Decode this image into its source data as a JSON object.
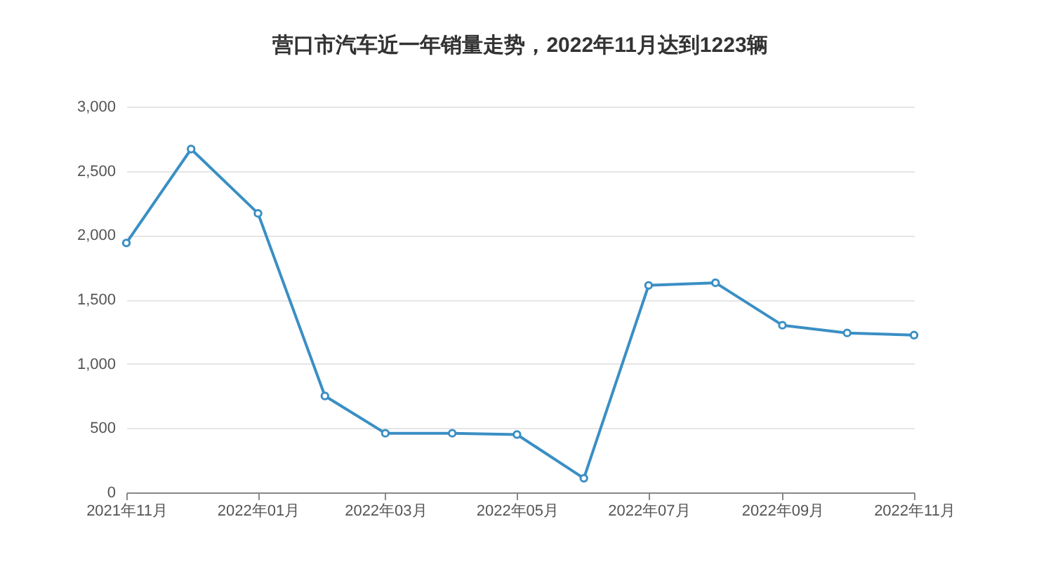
{
  "chart_data": {
    "type": "line",
    "title": "营口市汽车近一年销量走势，2022年11月达到1223辆",
    "x": [
      "2021-11",
      "2021-12",
      "2022-01",
      "2022-02",
      "2022-03",
      "2022-04",
      "2022-05",
      "2022-06",
      "2022-07",
      "2022-08",
      "2022-09",
      "2022-10",
      "2022-11"
    ],
    "series": [
      {
        "color": "#3a8fc4",
        "values": [
          1940,
          2670,
          2170,
          750,
          460,
          460,
          450,
          110,
          1610,
          1630,
          1300,
          1240,
          1223
        ]
      }
    ],
    "xlim": [
      "2021-11",
      "2022-11"
    ],
    "xticks": [
      {
        "value": "2021-11",
        "label": "2021年11月"
      },
      {
        "value": "2022-01",
        "label": "2022年01月"
      },
      {
        "value": "2022-03",
        "label": "2022年03月"
      },
      {
        "value": "2022-05",
        "label": "2022年05月"
      },
      {
        "value": "2022-07",
        "label": "2022年07月"
      },
      {
        "value": "2022-09",
        "label": "2022年09月"
      },
      {
        "value": "2022-11",
        "label": "2022年11月"
      }
    ],
    "ylim": [
      0,
      3000
    ],
    "yticks": [
      {
        "value": 0,
        "label": "0"
      },
      {
        "value": 500,
        "label": "500"
      },
      {
        "value": 1000,
        "label": "1,000"
      },
      {
        "value": 1500,
        "label": "1,500"
      },
      {
        "value": 2000,
        "label": "2,000"
      },
      {
        "value": 2500,
        "label": "2,500"
      },
      {
        "value": 3000,
        "label": "3,000"
      }
    ],
    "grid": "y",
    "marker": "circle",
    "line_style": "solid"
  }
}
